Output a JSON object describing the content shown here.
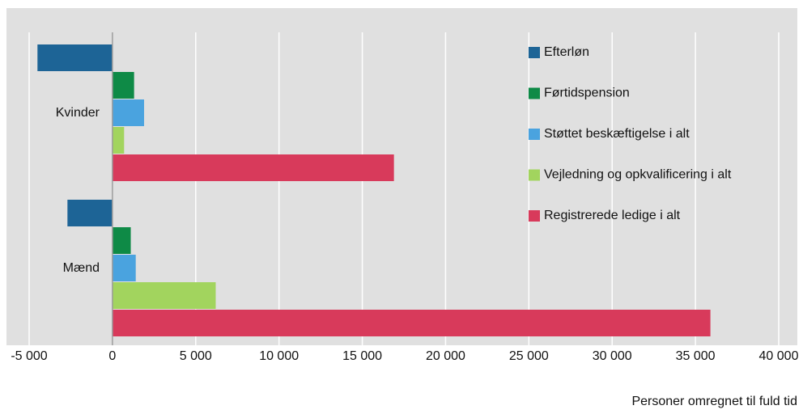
{
  "chart_data": {
    "type": "barh",
    "categories": [
      "Kvinder",
      "Mænd"
    ],
    "series": [
      {
        "name": "Efterløn",
        "color": "#1d6496",
        "values": [
          -4500,
          -2700
        ]
      },
      {
        "name": "Førtidspension",
        "color": "#0e8a46",
        "values": [
          1300,
          1100
        ]
      },
      {
        "name": "Støttet beskæftigelse i alt",
        "color": "#4aa3df",
        "values": [
          1900,
          1400
        ]
      },
      {
        "name": "Vejledning og opkvalificering i alt",
        "color": "#a2d45e",
        "values": [
          700,
          6200
        ]
      },
      {
        "name": "Registrerede ledige i alt",
        "color": "#d83a5b",
        "values": [
          16900,
          35900
        ]
      }
    ],
    "x_label": "Personer omregnet til fuld tid",
    "xlim": [
      -5000,
      40000
    ],
    "xticks": [
      {
        "value": -5000,
        "label": "-5 000"
      },
      0,
      {
        "value": 5000,
        "label": "5 000"
      },
      {
        "value": 10000,
        "label": "10 000"
      },
      {
        "value": 15000,
        "label": "15 000"
      },
      {
        "value": 20000,
        "label": "20 000"
      },
      {
        "value": 25000,
        "label": "25 000"
      },
      {
        "value": 30000,
        "label": "30 000"
      },
      {
        "value": 35000,
        "label": "35 000"
      },
      {
        "value": 40000,
        "label": "40 000"
      }
    ],
    "grid": true,
    "legend": "right"
  }
}
